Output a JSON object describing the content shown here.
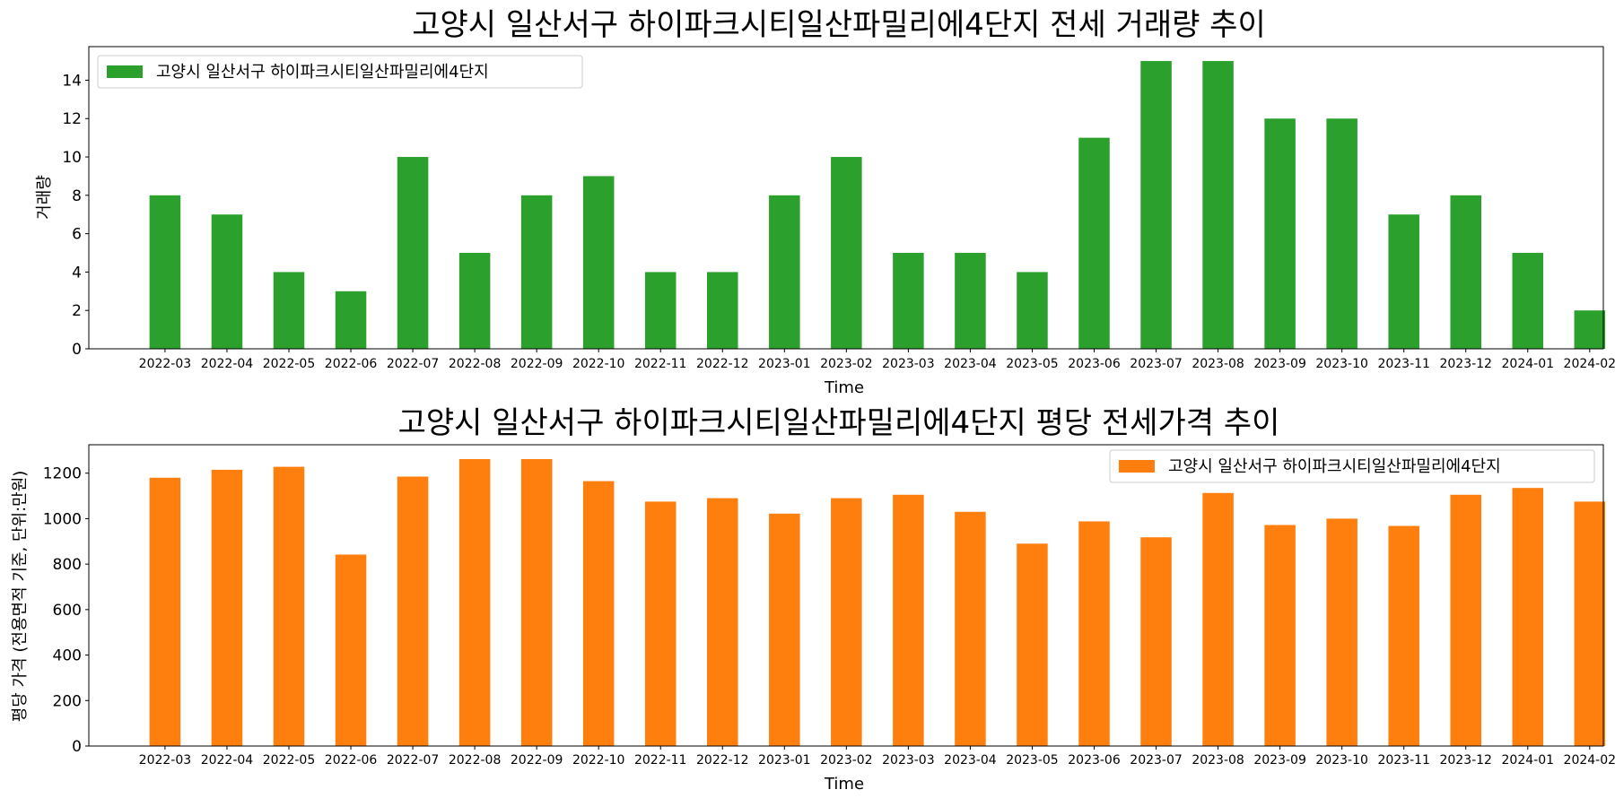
{
  "chart_data": [
    {
      "type": "bar",
      "title": "고양시 일산서구 하이파크시티일산파밀리에4단지 전세 거래량 추이",
      "xlabel": "Time",
      "ylabel": "거래량",
      "categories": [
        "2022-03",
        "2022-04",
        "2022-05",
        "2022-06",
        "2022-07",
        "2022-08",
        "2022-09",
        "2022-10",
        "2022-11",
        "2022-12",
        "2023-01",
        "2023-02",
        "2023-03",
        "2023-04",
        "2023-05",
        "2023-06",
        "2023-07",
        "2023-08",
        "2023-09",
        "2023-10",
        "2023-11",
        "2023-12",
        "2024-01",
        "2024-02"
      ],
      "series": [
        {
          "name": "고양시 일산서구 하이파크시티일산파밀리에4단지",
          "values": [
            8,
            7,
            4,
            3,
            10,
            5,
            8,
            9,
            4,
            4,
            8,
            10,
            5,
            5,
            4,
            11,
            15,
            15,
            12,
            12,
            7,
            8,
            5,
            2
          ]
        }
      ],
      "ylim": [
        0,
        15.75
      ],
      "yticks": [
        0,
        2,
        4,
        6,
        8,
        10,
        12,
        14
      ],
      "color": "#2ca02c",
      "legend_position": "upper left",
      "grid": false
    },
    {
      "type": "bar",
      "title": "고양시 일산서구 하이파크시티일산파밀리에4단지 평당 전세가격 추이",
      "xlabel": "Time",
      "ylabel": "평당 가격 (전용면적 기준, 단위:만원)",
      "categories": [
        "2022-03",
        "2022-04",
        "2022-05",
        "2022-06",
        "2022-07",
        "2022-08",
        "2022-09",
        "2022-10",
        "2022-11",
        "2022-12",
        "2023-01",
        "2023-02",
        "2023-03",
        "2023-04",
        "2023-05",
        "2023-06",
        "2023-07",
        "2023-08",
        "2023-09",
        "2023-10",
        "2023-11",
        "2023-12",
        "2024-01",
        "2024-02"
      ],
      "series": [
        {
          "name": "고양시 일산서구 하이파크시티일산파밀리에4단지",
          "values": [
            1180,
            1215,
            1228,
            842,
            1185,
            1262,
            1262,
            1165,
            1075,
            1090,
            1022,
            1090,
            1105,
            1030,
            890,
            988,
            918,
            1113,
            972,
            1000,
            968,
            1105,
            1135,
            1075
          ]
        }
      ],
      "ylim": [
        0,
        1325
      ],
      "yticks": [
        0,
        200,
        400,
        600,
        800,
        1000,
        1200
      ],
      "color": "#ff7f0e",
      "legend_position": "upper right",
      "grid": false
    }
  ]
}
